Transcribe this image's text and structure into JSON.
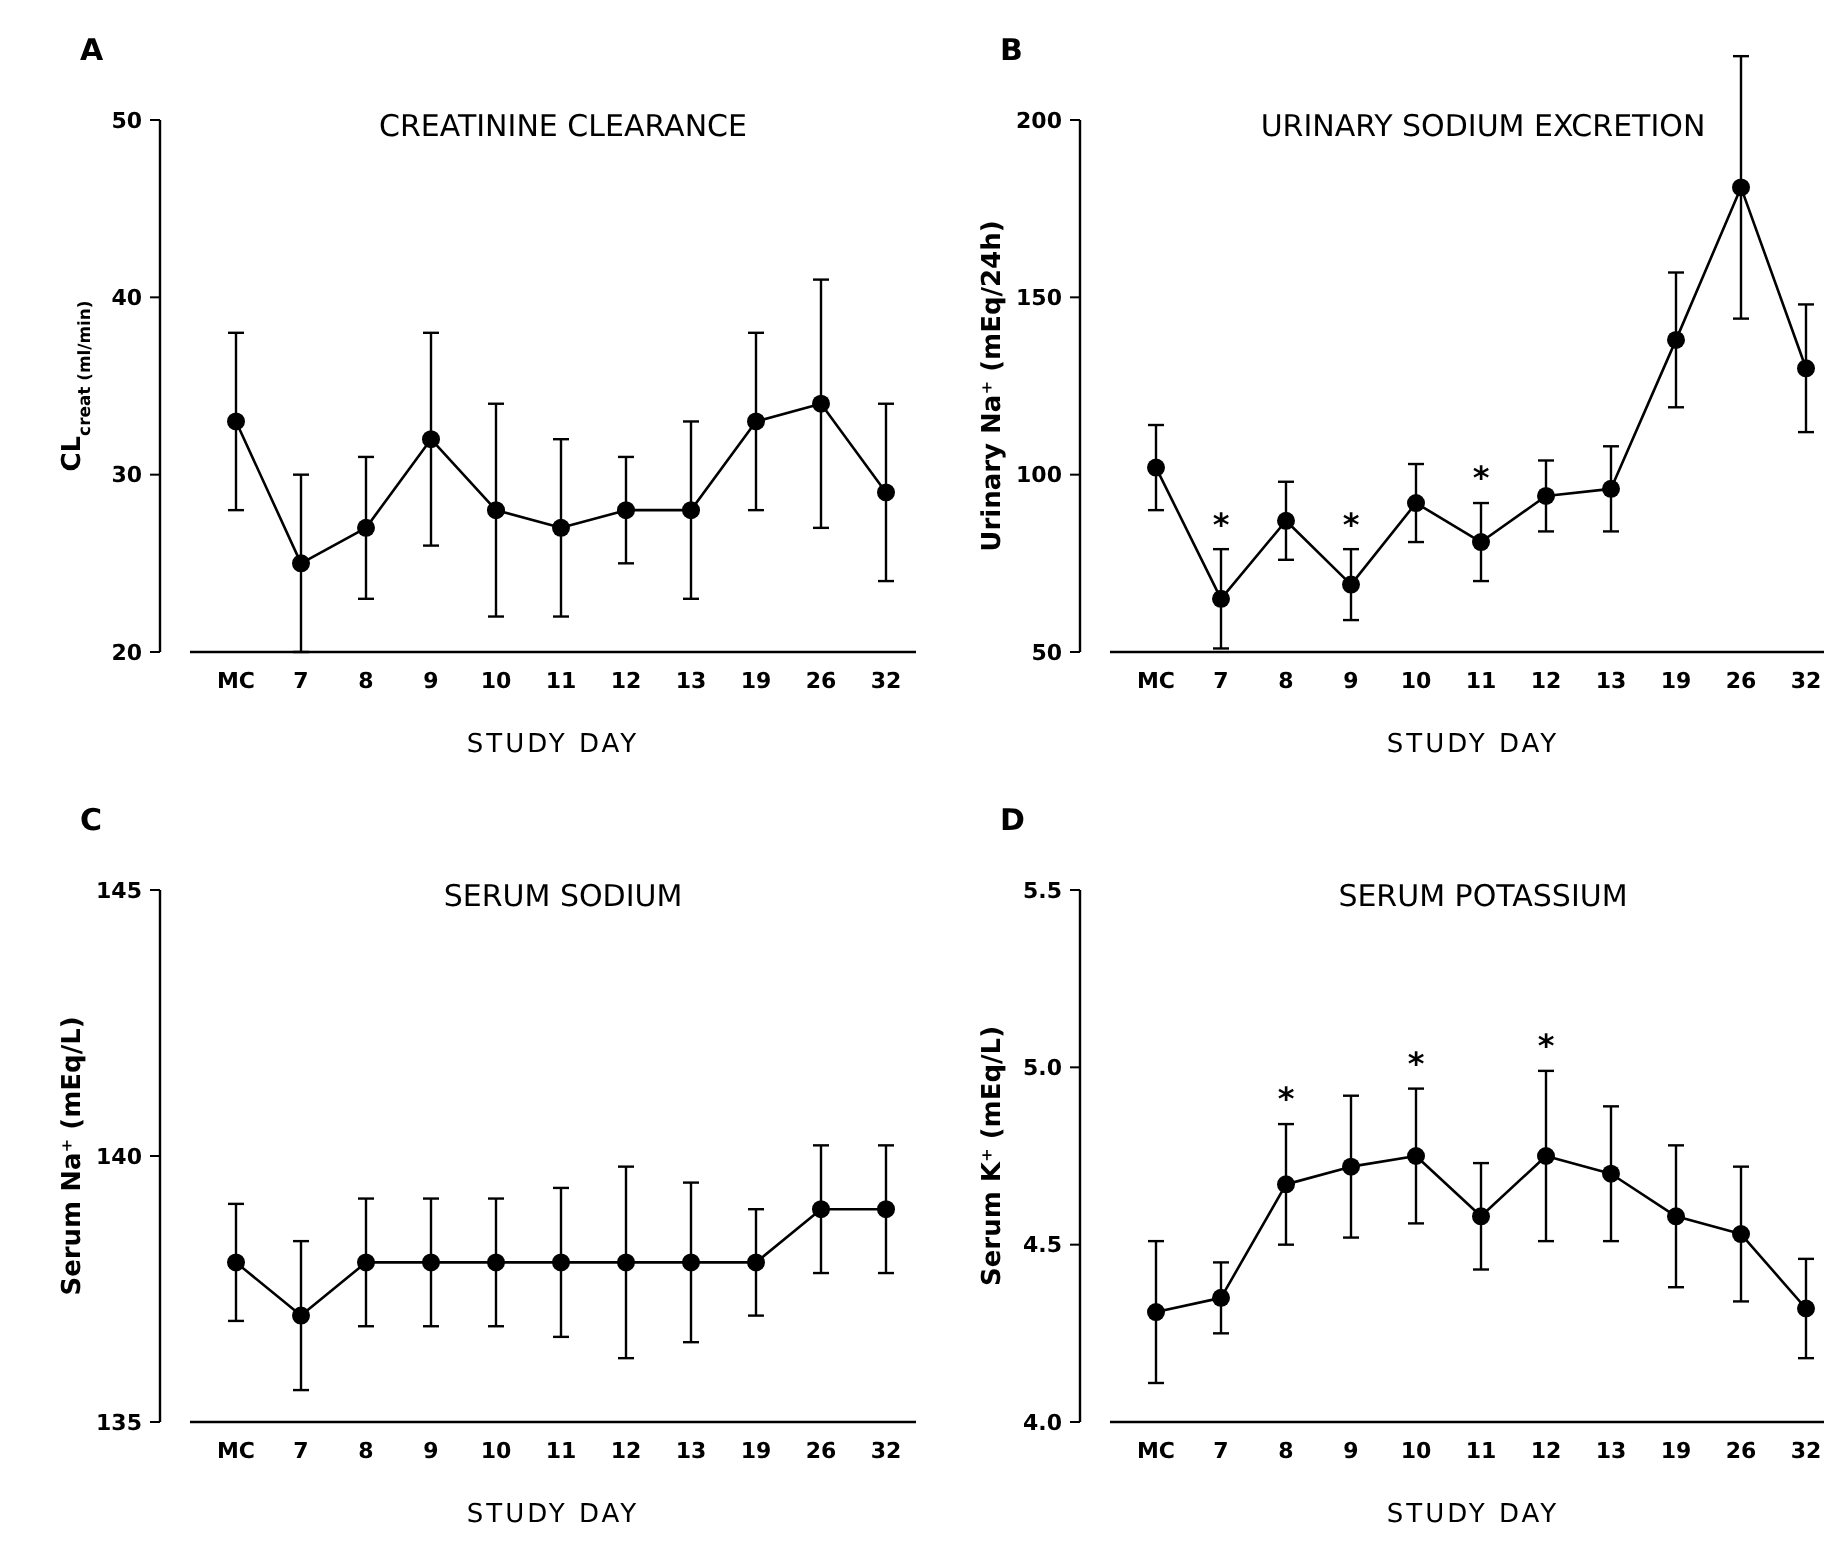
{
  "chart_data": [
    {
      "type": "line",
      "title": "CREATININE CLEARANCE",
      "xlabel": "STUDY DAY",
      "ylabel": "CL$_{creat (ml/min)}$",
      "categories": [
        "MC",
        "7",
        "8",
        "9",
        "10",
        "11",
        "12",
        "13",
        "19",
        "26",
        "32"
      ],
      "values": [
        33,
        25,
        27,
        32,
        28,
        27,
        28,
        28,
        33,
        34,
        29
      ],
      "errors": [
        5,
        5,
        4,
        6,
        6,
        5,
        3,
        5,
        5,
        7,
        5
      ],
      "ylim": [
        20,
        50
      ],
      "yticks": [
        20,
        30,
        40,
        50
      ],
      "color": "#000000",
      "marker": "circle",
      "line_style": "solid",
      "annotations": [
        "A"
      ]
    },
    {
      "type": "line",
      "title": "URINARY SODIUM EXCRETION",
      "xlabel": "STUDY DAY",
      "ylabel": "Urinary Na⁺ (mEq/24h)",
      "categories": [
        "MC",
        "7",
        "8",
        "9",
        "10",
        "11",
        "12",
        "13",
        "19",
        "26",
        "32"
      ],
      "values": [
        102,
        65,
        87,
        69,
        92,
        81,
        94,
        96,
        138,
        181,
        130
      ],
      "errors": [
        12,
        14,
        11,
        10,
        11,
        11,
        10,
        12,
        19,
        37,
        18
      ],
      "ylim": [
        50,
        200
      ],
      "yticks": [
        50,
        100,
        150,
        200
      ],
      "color": "#000000",
      "marker": "circle",
      "line_style": "solid",
      "annotations": [
        "B",
        {
          "text": "*",
          "x": "7",
          "y": 65
        },
        {
          "text": "*",
          "x": "9",
          "y": 69
        },
        {
          "text": "*",
          "x": "11",
          "y": 81
        }
      ]
    },
    {
      "type": "line",
      "title": "SERUM SODIUM",
      "xlabel": "STUDY DAY",
      "ylabel": "Serum Na⁺ (mEq/L)",
      "categories": [
        "MC",
        "7",
        "8",
        "9",
        "10",
        "11",
        "12",
        "13",
        "19",
        "26",
        "32"
      ],
      "values": [
        138,
        137,
        138,
        138,
        138,
        138,
        138,
        138,
        138,
        139,
        139
      ],
      "errors": [
        1.1,
        1.4,
        1.2,
        1.2,
        1.2,
        1.4,
        1.8,
        1.5,
        1.0,
        1.2,
        1.2
      ],
      "ylim": [
        135,
        145
      ],
      "yticks": [
        135,
        140,
        145
      ],
      "color": "#000000",
      "marker": "circle",
      "line_style": "solid",
      "annotations": [
        "C"
      ]
    },
    {
      "type": "line",
      "title": "SERUM POTASSIUM",
      "xlabel": "STUDY DAY",
      "ylabel": "Serum K⁺ (mEq/L)",
      "categories": [
        "MC",
        "7",
        "8",
        "9",
        "10",
        "11",
        "12",
        "13",
        "19",
        "26",
        "32"
      ],
      "values": [
        4.31,
        4.35,
        4.67,
        4.72,
        4.75,
        4.58,
        4.75,
        4.7,
        4.58,
        4.53,
        4.32
      ],
      "errors": [
        0.2,
        0.1,
        0.17,
        0.2,
        0.19,
        0.15,
        0.24,
        0.19,
        0.2,
        0.19,
        0.14
      ],
      "ylim": [
        4.0,
        5.5
      ],
      "yticks": [
        {
          "value": 4.0,
          "label": "4.0"
        },
        4.5,
        {
          "value": 5.0,
          "label": "5.0"
        },
        5.5
      ],
      "color": "#000000",
      "marker": "circle",
      "line_style": "solid",
      "annotations": [
        "D",
        {
          "text": "*",
          "x": "8",
          "y": 4.67
        },
        {
          "text": "*",
          "x": "10",
          "y": 4.75
        },
        {
          "text": "*",
          "x": "12",
          "y": 4.75
        }
      ]
    }
  ]
}
